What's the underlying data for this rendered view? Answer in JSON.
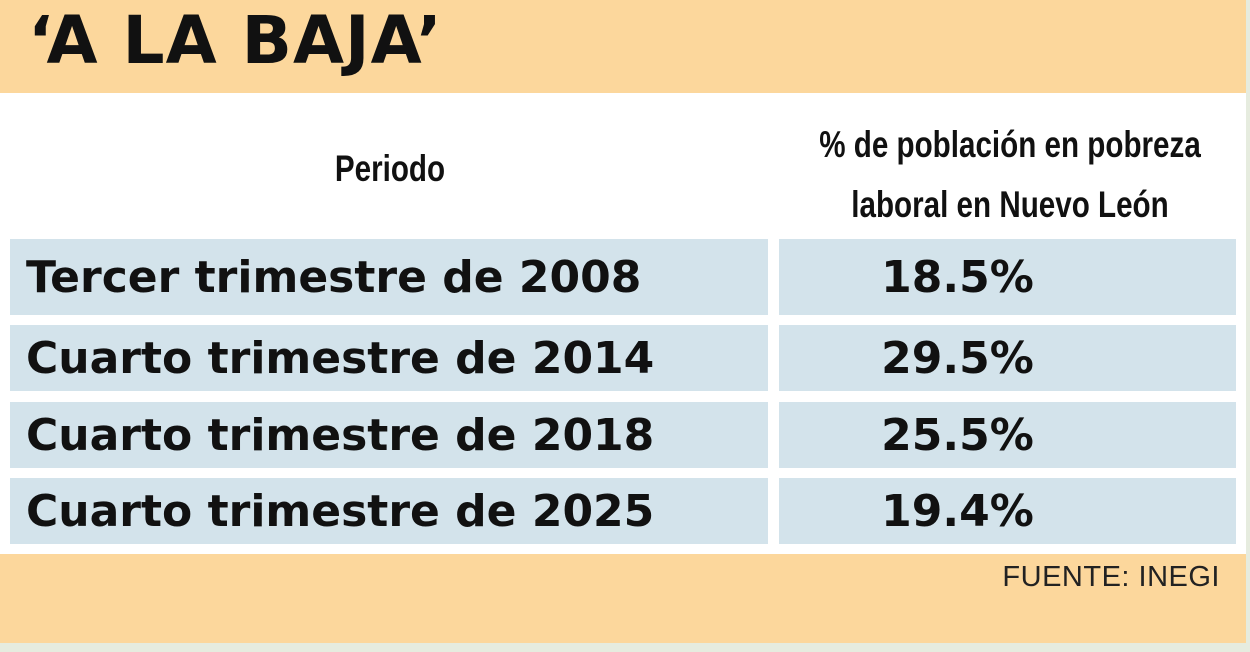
{
  "title": "‘A LA BAJA’",
  "source": "FUENTE: INEGI",
  "chart_data": {
    "type": "table",
    "title": "‘A LA BAJA’",
    "columns": [
      "Periodo",
      "% de población en pobreza laboral en Nuevo León"
    ],
    "rows": [
      {
        "period": "Tercer trimestre de 2008",
        "value": "18.5%"
      },
      {
        "period": "Cuarto trimestre de 2014",
        "value": "29.5%"
      },
      {
        "period": "Cuarto trimestre de 2018",
        "value": "25.5%"
      },
      {
        "period": "Cuarto trimestre de 2025",
        "value": "19.4%"
      }
    ]
  },
  "colors": {
    "frame": "#fcd79c",
    "row": "#d3e3eb",
    "panel": "#ffffff",
    "text": "#111111"
  }
}
